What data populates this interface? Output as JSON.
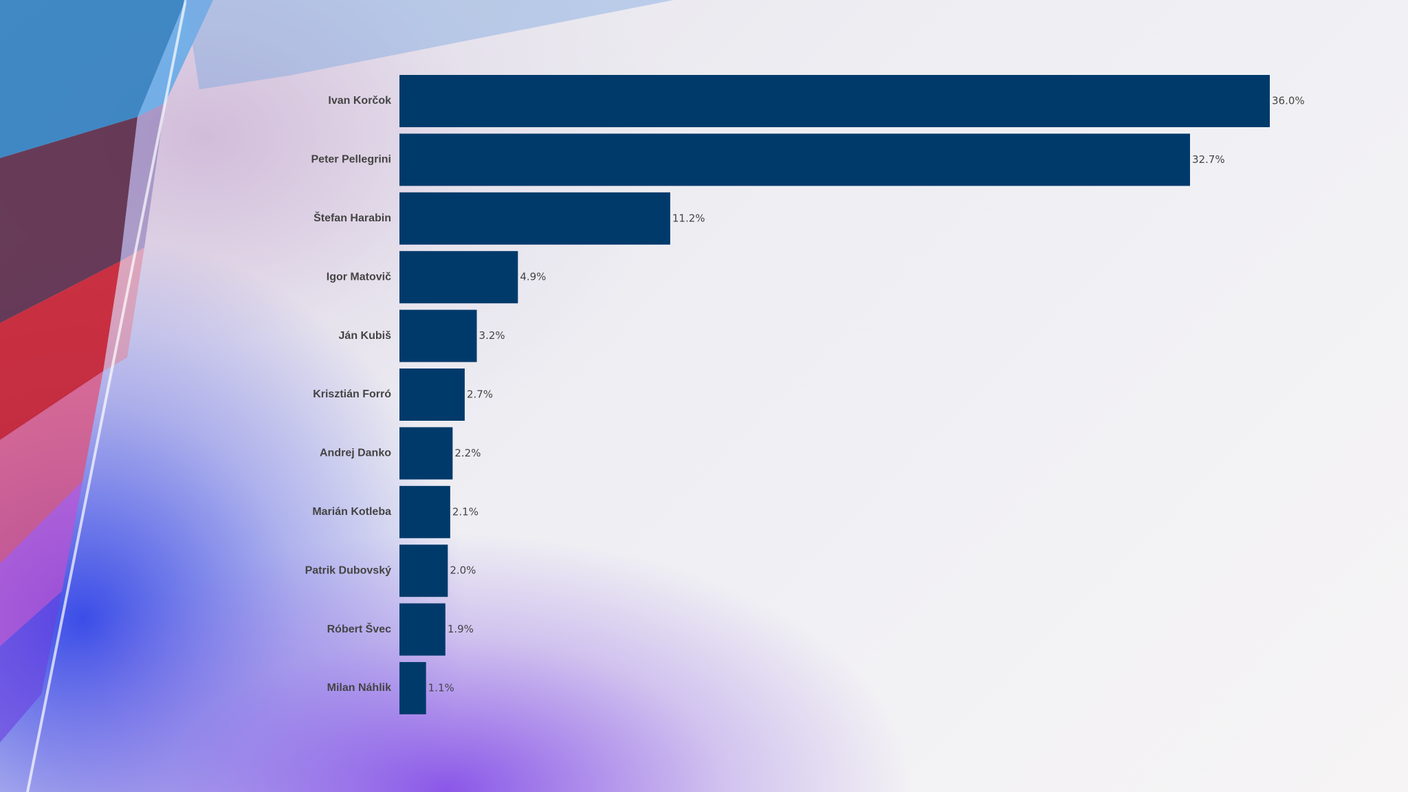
{
  "chart_data": {
    "type": "bar",
    "orientation": "horizontal",
    "categories": [
      "Ivan Korčok",
      "Peter Pellegrini",
      "Štefan Harabin",
      "Igor Matovič",
      "Ján Kubiš",
      "Krisztián Forró",
      "Andrej Danko",
      "Marián Kotleba",
      "Patrik Dubovský",
      "Róbert Švec",
      "Milan Náhlik"
    ],
    "values": [
      36.0,
      32.7,
      11.2,
      4.9,
      3.2,
      2.7,
      2.2,
      2.1,
      2.0,
      1.9,
      1.1
    ],
    "value_labels": [
      "36.0%",
      "32.7%",
      "11.2%",
      "4.9%",
      "3.2%",
      "2.7%",
      "2.2%",
      "2.1%",
      "2.0%",
      "1.9%",
      "1.1%"
    ],
    "title": "",
    "xlabel": "",
    "ylabel": "",
    "xlim": [
      0,
      36
    ],
    "grid": false,
    "legend": "none",
    "bar_color": "#003a6b",
    "label_color": "#444444"
  }
}
